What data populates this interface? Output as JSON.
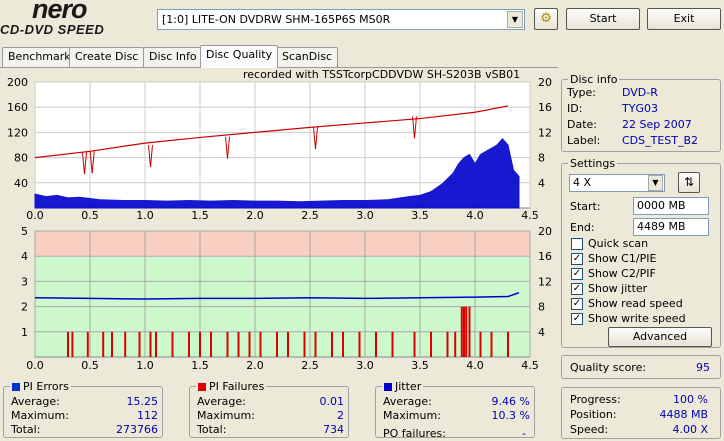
{
  "app": {
    "logo_main": "nero",
    "logo_sub": "CD-DVD SPEED"
  },
  "toolbar": {
    "drive": "[1:0]  LITE-ON DVDRW SHM-165P6S MS0R",
    "start_label": "Start",
    "exit_label": "Exit"
  },
  "tabs": [
    {
      "label": "Benchmark"
    },
    {
      "label": "Create Disc"
    },
    {
      "label": "Disc Info"
    },
    {
      "label": "Disc Quality"
    },
    {
      "label": "ScanDisc"
    }
  ],
  "chart_header": "recorded with TSSTcorpCDDVDW SH-S203B  vSB01",
  "chart_data": [
    {
      "type": "area",
      "series": [
        {
          "name": "PI Errors",
          "color": "#0000cc",
          "x": [
            0.0,
            0.1,
            0.2,
            0.3,
            0.4,
            0.5,
            0.6,
            0.8,
            1.0,
            1.2,
            1.4,
            1.6,
            1.8,
            2.0,
            2.2,
            2.4,
            2.6,
            2.8,
            3.0,
            3.2,
            3.4,
            3.5,
            3.6,
            3.7,
            3.8,
            3.85,
            3.9,
            3.95,
            4.0,
            4.05,
            4.1,
            4.15,
            4.2,
            4.25,
            4.3,
            4.35,
            4.4
          ],
          "values": [
            22,
            18,
            20,
            16,
            17,
            15,
            13,
            12,
            12,
            11,
            12,
            11,
            12,
            11,
            11,
            10,
            11,
            12,
            12,
            13,
            18,
            20,
            26,
            38,
            55,
            70,
            80,
            85,
            70,
            85,
            90,
            95,
            100,
            110,
            100,
            60,
            50
          ]
        }
      ],
      "x_ticks": [
        "0.0",
        "0.5",
        "1.0",
        "1.5",
        "2.0",
        "2.5",
        "3.0",
        "3.5",
        "4.0",
        "4.5"
      ],
      "y_ticks_left": [
        "200",
        "160",
        "120",
        "80",
        "40"
      ],
      "y_ticks_right": [
        "20",
        "16",
        "12",
        "8",
        "4"
      ],
      "xlim": [
        0,
        4.5
      ],
      "ylim": [
        0,
        200
      ]
    },
    {
      "type": "bar",
      "series": [
        {
          "name": "PI Failures",
          "color": "#dd0000",
          "x": [
            0.3,
            0.34,
            0.48,
            0.62,
            0.7,
            0.82,
            0.95,
            1.05,
            1.1,
            1.25,
            1.4,
            1.5,
            1.6,
            1.75,
            1.85,
            1.95,
            2.05,
            2.2,
            2.3,
            2.45,
            2.55,
            2.7,
            2.8,
            2.95,
            3.1,
            3.25,
            3.45,
            3.6,
            3.75,
            3.82,
            3.88,
            3.9,
            3.92,
            3.95,
            4.05,
            4.15,
            4.3
          ],
          "values": [
            1,
            1,
            1,
            1,
            1,
            1,
            1,
            1,
            1,
            1,
            1,
            1,
            1,
            1,
            1,
            1,
            1,
            1,
            1,
            1,
            1,
            1,
            1,
            1,
            1,
            1,
            1,
            1,
            1,
            1,
            2,
            2,
            2,
            2,
            1,
            1,
            1
          ]
        },
        {
          "name": "Jitter",
          "color": "#0000cc",
          "x": [
            0.0,
            0.5,
            1.0,
            1.5,
            2.0,
            2.5,
            3.0,
            3.5,
            4.0,
            4.3,
            4.4
          ],
          "values": [
            9.4,
            9.3,
            9.2,
            9.3,
            9.3,
            9.4,
            9.3,
            9.4,
            9.5,
            9.6,
            10.2
          ]
        }
      ],
      "x_ticks": [
        "0.0",
        "0.5",
        "1.0",
        "1.5",
        "2.0",
        "2.5",
        "3.0",
        "3.5",
        "4.0",
        "4.5"
      ],
      "y_ticks_left": [
        "5",
        "4",
        "3",
        "2",
        "1"
      ],
      "y_ticks_right": [
        "20",
        "16",
        "12",
        "8",
        "4"
      ],
      "xlim": [
        0,
        4.5
      ],
      "ylim": [
        0,
        5
      ]
    }
  ],
  "disc_info": {
    "title": "Disc info",
    "rows": [
      {
        "label": "Type:",
        "value": "DVD-R"
      },
      {
        "label": "ID:",
        "value": "TYG03"
      },
      {
        "label": "Date:",
        "value": "22 Sep 2007"
      },
      {
        "label": "Label:",
        "value": "CDS_TEST_B2"
      }
    ]
  },
  "settings": {
    "title": "Settings",
    "speed": "4 X",
    "start_label": "Start:",
    "start_value": "0000 MB",
    "end_label": "End:",
    "end_value": "4489 MB",
    "checkboxes": [
      {
        "label": "Quick scan",
        "checked": ""
      },
      {
        "label": "Show C1/PIE",
        "checked": "✓"
      },
      {
        "label": "Show C2/PIF",
        "checked": "✓"
      },
      {
        "label": "Show jitter",
        "checked": "✓"
      },
      {
        "label": "Show read speed",
        "checked": "✓"
      },
      {
        "label": "Show write speed",
        "checked": "✓"
      }
    ],
    "advanced_label": "Advanced"
  },
  "quality": {
    "label": "Quality score:",
    "value": "95"
  },
  "progress": {
    "rows": [
      {
        "label": "Progress:",
        "value": "100 %"
      },
      {
        "label": "Position:",
        "value": "4488 MB"
      },
      {
        "label": "Speed:",
        "value": "4.00 X"
      }
    ]
  },
  "pi_errors": {
    "title": "PI Errors",
    "color": "#0033cc",
    "rows": [
      {
        "label": "Average:",
        "value": "15.25"
      },
      {
        "label": "Maximum:",
        "value": "112"
      },
      {
        "label": "Total:",
        "value": "273766"
      }
    ]
  },
  "pi_failures": {
    "title": "PI Failures",
    "color": "#dd0000",
    "rows": [
      {
        "label": "Average:",
        "value": "0.01"
      },
      {
        "label": "Maximum:",
        "value": "2"
      },
      {
        "label": "Total:",
        "value": "734"
      }
    ]
  },
  "jitter": {
    "title": "Jitter",
    "color": "#0000cc",
    "rows": [
      {
        "label": "Average:",
        "value": "9.46 %"
      },
      {
        "label": "Maximum:",
        "value": "10.3 %"
      }
    ],
    "po_label": "PO failures:",
    "po_value": "-"
  }
}
